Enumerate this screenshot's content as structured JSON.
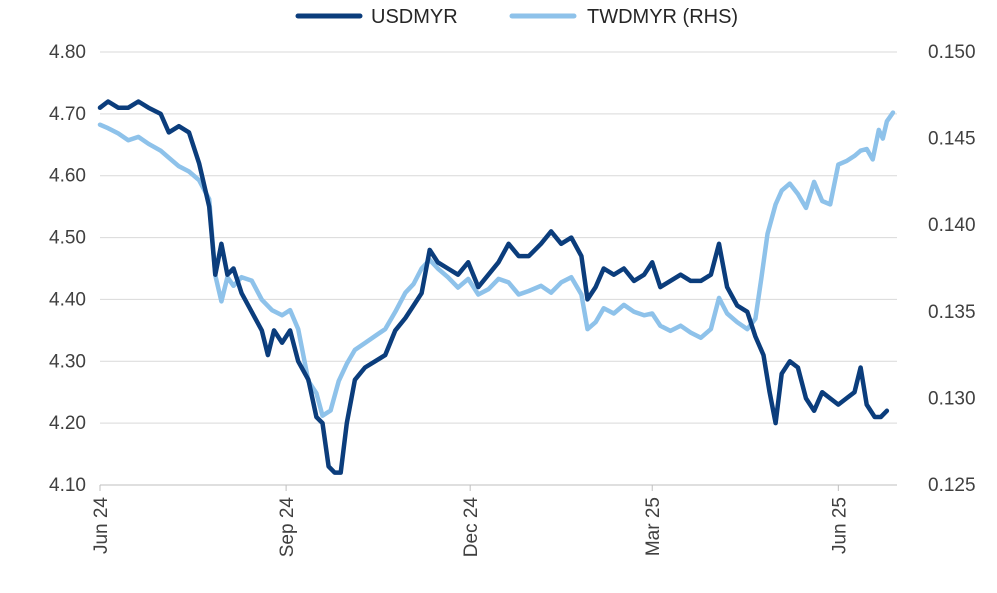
{
  "chart_data": {
    "type": "line",
    "legend": {
      "placement": "top"
    },
    "grid": {
      "horizontal": true,
      "vertical": false
    },
    "left_axis": {
      "ylim": [
        4.1,
        4.8
      ],
      "ticks": [
        4.8,
        4.7,
        4.6,
        4.5,
        4.4,
        4.3,
        4.2,
        4.1
      ],
      "tick_labels": [
        "4.80",
        "4.70",
        "4.60",
        "4.50",
        "4.40",
        "4.30",
        "4.20",
        "4.10"
      ]
    },
    "right_axis": {
      "ylim": [
        0.125,
        0.15
      ],
      "ticks": [
        0.15,
        0.145,
        0.14,
        0.135,
        0.13,
        0.125
      ],
      "tick_labels": [
        "0.150",
        "0.145",
        "0.140",
        "0.135",
        "0.130",
        "0.125"
      ]
    },
    "x_axis": {
      "xlim": [
        "2024-06-01",
        "2025-06-30"
      ],
      "tick_labels": [
        "Jun 24",
        "Sep 24",
        "Dec 24",
        "Mar 25",
        "Jun 25"
      ],
      "tick_dates": [
        "2024-06-01",
        "2024-09-01",
        "2024-12-01",
        "2025-03-01",
        "2025-06-01"
      ]
    },
    "series": [
      {
        "name": "USDMYR",
        "axis": "left",
        "color": "#0b3d7c",
        "points": [
          [
            "2024-06-01",
            4.71
          ],
          [
            "2024-06-05",
            4.72
          ],
          [
            "2024-06-10",
            4.71
          ],
          [
            "2024-06-15",
            4.71
          ],
          [
            "2024-06-20",
            4.72
          ],
          [
            "2024-06-25",
            4.71
          ],
          [
            "2024-07-01",
            4.7
          ],
          [
            "2024-07-05",
            4.67
          ],
          [
            "2024-07-10",
            4.68
          ],
          [
            "2024-07-15",
            4.67
          ],
          [
            "2024-07-20",
            4.62
          ],
          [
            "2024-07-25",
            4.55
          ],
          [
            "2024-07-28",
            4.44
          ],
          [
            "2024-07-31",
            4.49
          ],
          [
            "2024-08-03",
            4.44
          ],
          [
            "2024-08-06",
            4.45
          ],
          [
            "2024-08-10",
            4.41
          ],
          [
            "2024-08-15",
            4.38
          ],
          [
            "2024-08-20",
            4.35
          ],
          [
            "2024-08-23",
            4.31
          ],
          [
            "2024-08-26",
            4.35
          ],
          [
            "2024-08-30",
            4.33
          ],
          [
            "2024-09-03",
            4.35
          ],
          [
            "2024-09-07",
            4.3
          ],
          [
            "2024-09-12",
            4.27
          ],
          [
            "2024-09-16",
            4.21
          ],
          [
            "2024-09-19",
            4.2
          ],
          [
            "2024-09-22",
            4.13
          ],
          [
            "2024-09-25",
            4.12
          ],
          [
            "2024-09-28",
            4.12
          ],
          [
            "2024-10-01",
            4.2
          ],
          [
            "2024-10-05",
            4.27
          ],
          [
            "2024-10-10",
            4.29
          ],
          [
            "2024-10-15",
            4.3
          ],
          [
            "2024-10-20",
            4.31
          ],
          [
            "2024-10-25",
            4.35
          ],
          [
            "2024-10-30",
            4.37
          ],
          [
            "2024-11-03",
            4.39
          ],
          [
            "2024-11-07",
            4.41
          ],
          [
            "2024-11-11",
            4.48
          ],
          [
            "2024-11-15",
            4.46
          ],
          [
            "2024-11-20",
            4.45
          ],
          [
            "2024-11-25",
            4.44
          ],
          [
            "2024-11-30",
            4.46
          ],
          [
            "2024-12-05",
            4.42
          ],
          [
            "2024-12-10",
            4.44
          ],
          [
            "2024-12-15",
            4.46
          ],
          [
            "2024-12-20",
            4.49
          ],
          [
            "2024-12-25",
            4.47
          ],
          [
            "2024-12-30",
            4.47
          ],
          [
            "2025-01-05",
            4.49
          ],
          [
            "2025-01-10",
            4.51
          ],
          [
            "2025-01-15",
            4.49
          ],
          [
            "2025-01-20",
            4.5
          ],
          [
            "2025-01-25",
            4.47
          ],
          [
            "2025-01-28",
            4.4
          ],
          [
            "2025-02-01",
            4.42
          ],
          [
            "2025-02-05",
            4.45
          ],
          [
            "2025-02-10",
            4.44
          ],
          [
            "2025-02-15",
            4.45
          ],
          [
            "2025-02-20",
            4.43
          ],
          [
            "2025-02-25",
            4.44
          ],
          [
            "2025-03-01",
            4.46
          ],
          [
            "2025-03-05",
            4.42
          ],
          [
            "2025-03-10",
            4.43
          ],
          [
            "2025-03-15",
            4.44
          ],
          [
            "2025-03-20",
            4.43
          ],
          [
            "2025-03-25",
            4.43
          ],
          [
            "2025-03-30",
            4.44
          ],
          [
            "2025-04-03",
            4.49
          ],
          [
            "2025-04-07",
            4.42
          ],
          [
            "2025-04-12",
            4.39
          ],
          [
            "2025-04-17",
            4.38
          ],
          [
            "2025-04-21",
            4.34
          ],
          [
            "2025-04-25",
            4.31
          ],
          [
            "2025-04-28",
            4.25
          ],
          [
            "2025-05-01",
            4.2
          ],
          [
            "2025-05-04",
            4.28
          ],
          [
            "2025-05-08",
            4.3
          ],
          [
            "2025-05-12",
            4.29
          ],
          [
            "2025-05-16",
            4.24
          ],
          [
            "2025-05-20",
            4.22
          ],
          [
            "2025-05-24",
            4.25
          ],
          [
            "2025-05-28",
            4.24
          ],
          [
            "2025-06-01",
            4.23
          ],
          [
            "2025-06-05",
            4.24
          ],
          [
            "2025-06-09",
            4.25
          ],
          [
            "2025-06-12",
            4.29
          ],
          [
            "2025-06-15",
            4.23
          ],
          [
            "2025-06-19",
            4.21
          ],
          [
            "2025-06-22",
            4.21
          ],
          [
            "2025-06-25",
            4.22
          ]
        ]
      },
      {
        "name": "TWDMYR (RHS)",
        "axis": "right",
        "color": "#8ec2ea",
        "points": [
          [
            "2024-06-01",
            0.1458
          ],
          [
            "2024-06-05",
            0.1456
          ],
          [
            "2024-06-10",
            0.1453
          ],
          [
            "2024-06-15",
            0.1449
          ],
          [
            "2024-06-20",
            0.1451
          ],
          [
            "2024-06-25",
            0.1447
          ],
          [
            "2024-07-01",
            0.1443
          ],
          [
            "2024-07-05",
            0.1439
          ],
          [
            "2024-07-10",
            0.1434
          ],
          [
            "2024-07-15",
            0.1431
          ],
          [
            "2024-07-20",
            0.1426
          ],
          [
            "2024-07-25",
            0.1415
          ],
          [
            "2024-07-28",
            0.1371
          ],
          [
            "2024-07-31",
            0.1356
          ],
          [
            "2024-08-03",
            0.137
          ],
          [
            "2024-08-06",
            0.1365
          ],
          [
            "2024-08-10",
            0.137
          ],
          [
            "2024-08-15",
            0.1368
          ],
          [
            "2024-08-20",
            0.1357
          ],
          [
            "2024-08-25",
            0.1351
          ],
          [
            "2024-08-30",
            0.1348
          ],
          [
            "2024-09-03",
            0.1351
          ],
          [
            "2024-09-07",
            0.134
          ],
          [
            "2024-09-12",
            0.131
          ],
          [
            "2024-09-16",
            0.1303
          ],
          [
            "2024-09-19",
            0.129
          ],
          [
            "2024-09-23",
            0.1293
          ],
          [
            "2024-09-27",
            0.131
          ],
          [
            "2024-10-01",
            0.132
          ],
          [
            "2024-10-05",
            0.1328
          ],
          [
            "2024-10-10",
            0.1332
          ],
          [
            "2024-10-15",
            0.1336
          ],
          [
            "2024-10-20",
            0.134
          ],
          [
            "2024-10-25",
            0.135
          ],
          [
            "2024-10-30",
            0.1361
          ],
          [
            "2024-11-03",
            0.1366
          ],
          [
            "2024-11-07",
            0.1375
          ],
          [
            "2024-11-11",
            0.138
          ],
          [
            "2024-11-15",
            0.1375
          ],
          [
            "2024-11-20",
            0.137
          ],
          [
            "2024-11-25",
            0.1364
          ],
          [
            "2024-11-30",
            0.1369
          ],
          [
            "2024-12-05",
            0.136
          ],
          [
            "2024-12-10",
            0.1363
          ],
          [
            "2024-12-15",
            0.1369
          ],
          [
            "2024-12-20",
            0.1367
          ],
          [
            "2024-12-25",
            0.136
          ],
          [
            "2024-12-30",
            0.1362
          ],
          [
            "2025-01-05",
            0.1365
          ],
          [
            "2025-01-10",
            0.1361
          ],
          [
            "2025-01-15",
            0.1367
          ],
          [
            "2025-01-20",
            0.137
          ],
          [
            "2025-01-25",
            0.136
          ],
          [
            "2025-01-28",
            0.134
          ],
          [
            "2025-02-01",
            0.1344
          ],
          [
            "2025-02-05",
            0.1352
          ],
          [
            "2025-02-10",
            0.1349
          ],
          [
            "2025-02-15",
            0.1354
          ],
          [
            "2025-02-20",
            0.135
          ],
          [
            "2025-02-25",
            0.1348
          ],
          [
            "2025-03-01",
            0.1349
          ],
          [
            "2025-03-05",
            0.1342
          ],
          [
            "2025-03-10",
            0.1339
          ],
          [
            "2025-03-15",
            0.1342
          ],
          [
            "2025-03-20",
            0.1338
          ],
          [
            "2025-03-25",
            0.1335
          ],
          [
            "2025-03-30",
            0.134
          ],
          [
            "2025-04-03",
            0.1358
          ],
          [
            "2025-04-07",
            0.1349
          ],
          [
            "2025-04-12",
            0.1344
          ],
          [
            "2025-04-17",
            0.134
          ],
          [
            "2025-04-21",
            0.1346
          ],
          [
            "2025-04-24",
            0.137
          ],
          [
            "2025-04-27",
            0.1395
          ],
          [
            "2025-05-01",
            0.1412
          ],
          [
            "2025-05-04",
            0.142
          ],
          [
            "2025-05-08",
            0.1424
          ],
          [
            "2025-05-12",
            0.1418
          ],
          [
            "2025-05-16",
            0.141
          ],
          [
            "2025-05-20",
            0.1425
          ],
          [
            "2025-05-24",
            0.1414
          ],
          [
            "2025-05-28",
            0.1412
          ],
          [
            "2025-06-01",
            0.1435
          ],
          [
            "2025-06-05",
            0.1437
          ],
          [
            "2025-06-09",
            0.144
          ],
          [
            "2025-06-12",
            0.1443
          ],
          [
            "2025-06-15",
            0.1444
          ],
          [
            "2025-06-18",
            0.1438
          ],
          [
            "2025-06-21",
            0.1455
          ],
          [
            "2025-06-23",
            0.145
          ],
          [
            "2025-06-25",
            0.146
          ],
          [
            "2025-06-28",
            0.1465
          ]
        ]
      }
    ]
  }
}
